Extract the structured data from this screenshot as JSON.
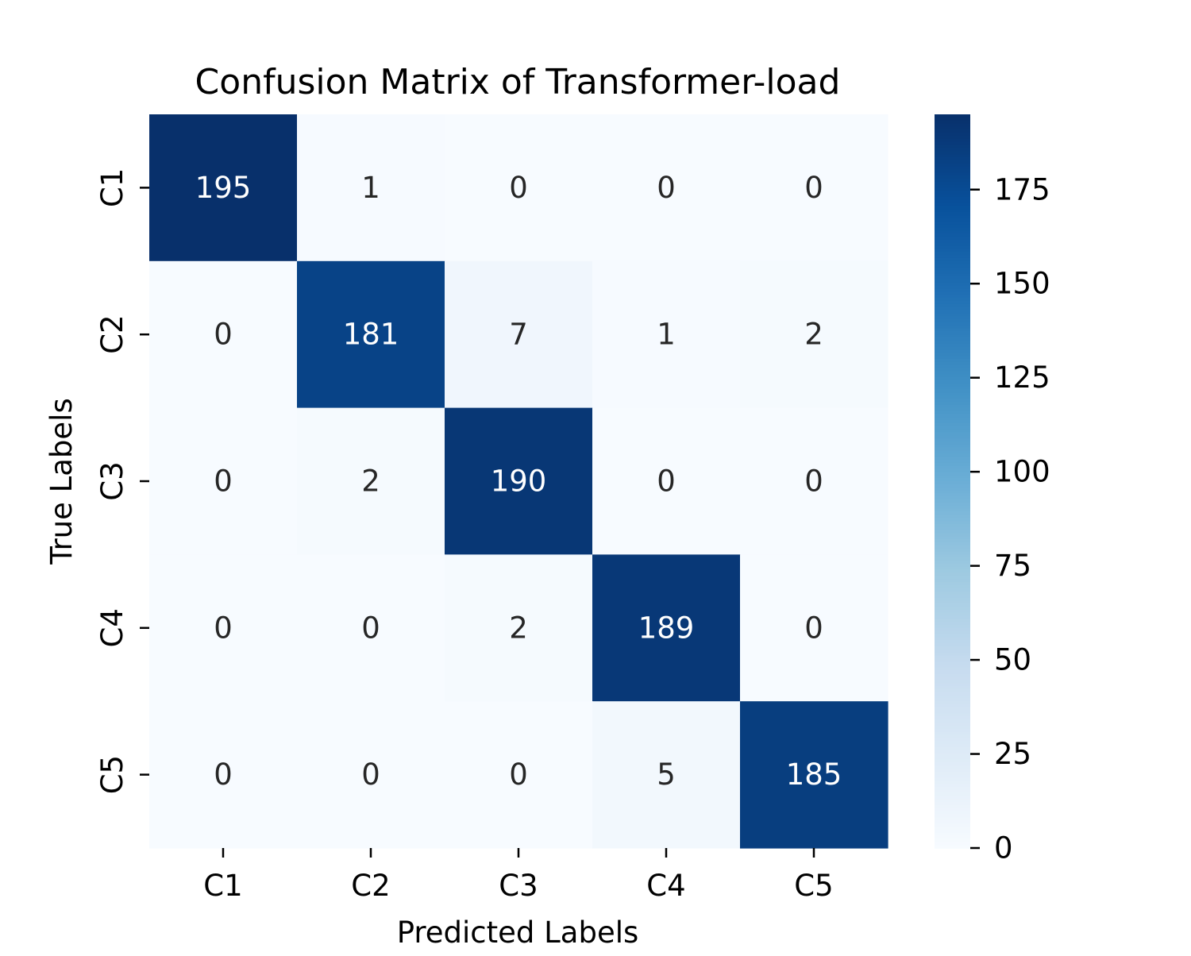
{
  "chart_data": {
    "type": "heatmap",
    "title": "Confusion Matrix of Transformer-load",
    "xlabel": "Predicted Labels",
    "ylabel": "True Labels",
    "x_categories": [
      "C1",
      "C2",
      "C3",
      "C4",
      "C5"
    ],
    "y_categories": [
      "C1",
      "C2",
      "C3",
      "C4",
      "C5"
    ],
    "matrix": [
      [
        195,
        1,
        0,
        0,
        0
      ],
      [
        0,
        181,
        7,
        1,
        2
      ],
      [
        0,
        2,
        190,
        0,
        0
      ],
      [
        0,
        0,
        2,
        189,
        0
      ],
      [
        0,
        0,
        0,
        5,
        185
      ]
    ],
    "colorbar": {
      "colormap": "Blues",
      "vmin": 0,
      "vmax": 195,
      "ticks": [
        0,
        25,
        50,
        75,
        100,
        125,
        150,
        175
      ]
    },
    "grid": false,
    "annotations": true
  }
}
